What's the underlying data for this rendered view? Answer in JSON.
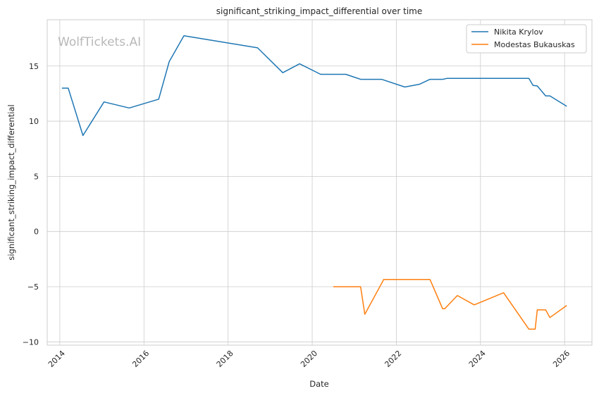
{
  "chart_data": {
    "type": "line",
    "title": "significant_striking_impact_differential over time",
    "xlabel": "Date",
    "ylabel": "significant_striking_impact_differential",
    "xlim": [
      2013.7,
      2026.65
    ],
    "ylim": [
      -10.3,
      19.2
    ],
    "x_ticks": [
      2014,
      2016,
      2018,
      2020,
      2022,
      2024,
      2026
    ],
    "y_ticks": [
      -10,
      -5,
      0,
      5,
      10,
      15
    ],
    "y_tick_labels": [
      "−10",
      "−5",
      "0",
      "5",
      "10",
      "15"
    ],
    "grid": true,
    "legend_position": "top-right",
    "watermark": "WolfTickets.AI",
    "series": [
      {
        "name": "Nikita Krylov",
        "color": "#1f77b4",
        "points": [
          [
            2014.05,
            13.0
          ],
          [
            2014.2,
            13.0
          ],
          [
            2014.55,
            8.7
          ],
          [
            2015.05,
            11.75
          ],
          [
            2015.65,
            11.2
          ],
          [
            2016.35,
            12.0
          ],
          [
            2016.6,
            15.4
          ],
          [
            2016.95,
            17.75
          ],
          [
            2018.7,
            16.65
          ],
          [
            2019.3,
            14.4
          ],
          [
            2019.7,
            15.2
          ],
          [
            2020.2,
            14.25
          ],
          [
            2020.8,
            14.25
          ],
          [
            2021.15,
            13.8
          ],
          [
            2021.65,
            13.8
          ],
          [
            2022.2,
            13.1
          ],
          [
            2022.55,
            13.35
          ],
          [
            2022.8,
            13.8
          ],
          [
            2023.1,
            13.8
          ],
          [
            2023.2,
            13.88
          ],
          [
            2025.0,
            13.88
          ],
          [
            2025.15,
            13.88
          ],
          [
            2025.25,
            13.25
          ],
          [
            2025.35,
            13.2
          ],
          [
            2025.55,
            12.3
          ],
          [
            2025.65,
            12.3
          ],
          [
            2026.05,
            11.35
          ]
        ]
      },
      {
        "name": "Modestas Bukauskas",
        "color": "#ff7f0e",
        "points": [
          [
            2020.5,
            -5.0
          ],
          [
            2020.95,
            -5.0
          ],
          [
            2021.15,
            -5.0
          ],
          [
            2021.25,
            -7.5
          ],
          [
            2021.7,
            -4.35
          ],
          [
            2022.8,
            -4.35
          ],
          [
            2023.1,
            -7.0
          ],
          [
            2023.15,
            -7.0
          ],
          [
            2023.45,
            -5.8
          ],
          [
            2023.85,
            -6.65
          ],
          [
            2024.55,
            -5.55
          ],
          [
            2025.15,
            -8.85
          ],
          [
            2025.3,
            -8.85
          ],
          [
            2025.35,
            -7.1
          ],
          [
            2025.55,
            -7.1
          ],
          [
            2025.65,
            -7.8
          ],
          [
            2026.05,
            -6.7
          ]
        ]
      }
    ]
  }
}
